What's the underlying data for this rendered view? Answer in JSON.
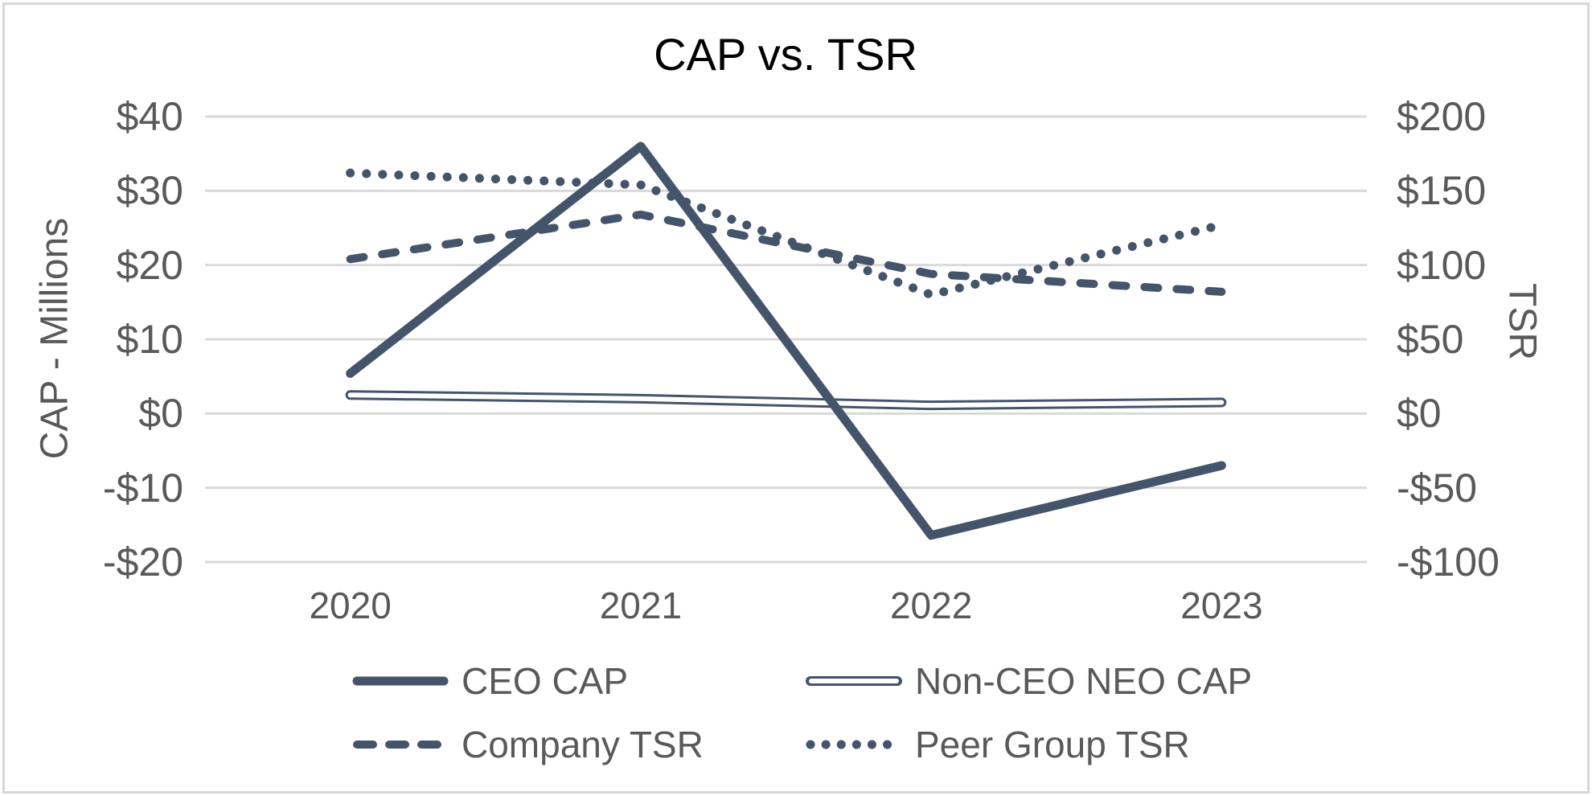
{
  "chart_data": {
    "type": "line",
    "title": "CAP vs. TSR",
    "categories": [
      "2020",
      "2021",
      "2022",
      "2023"
    ],
    "left_axis": {
      "title": "CAP - Millions",
      "tick_labels": [
        "$40",
        "$30",
        "$20",
        "$10",
        "$0",
        "-$10",
        "-$20"
      ],
      "tick_values": [
        40,
        30,
        20,
        10,
        0,
        -10,
        -20
      ],
      "range": [
        -20,
        40
      ]
    },
    "right_axis": {
      "title": "TSR",
      "tick_labels": [
        "$200",
        "$150",
        "$100",
        "$50",
        "$0",
        "-$50",
        "-$100"
      ],
      "tick_values": [
        200,
        150,
        100,
        50,
        0,
        -50,
        -100
      ],
      "range": [
        -100,
        200
      ]
    },
    "series": [
      {
        "name": "CEO CAP",
        "axis": "left",
        "style": "solid-thick",
        "values": [
          5.4,
          36.0,
          -16.4,
          -7.0
        ]
      },
      {
        "name": "Non-CEO NEO CAP",
        "axis": "left",
        "style": "outlined",
        "values": [
          2.5,
          2.0,
          1.1,
          1.5
        ]
      },
      {
        "name": "Company TSR",
        "axis": "right",
        "style": "dashed",
        "values": [
          104,
          134,
          94,
          82
        ]
      },
      {
        "name": "Peer Group TSR",
        "axis": "right",
        "style": "dotted",
        "values": [
          162,
          154,
          80,
          127
        ]
      }
    ],
    "legend_position": "bottom",
    "grid": true,
    "colors": {
      "series": "#44546A",
      "grid": "#D9D9D9",
      "axis_text": "#595959",
      "title": "#000000",
      "border": "#D7D7D7"
    }
  }
}
